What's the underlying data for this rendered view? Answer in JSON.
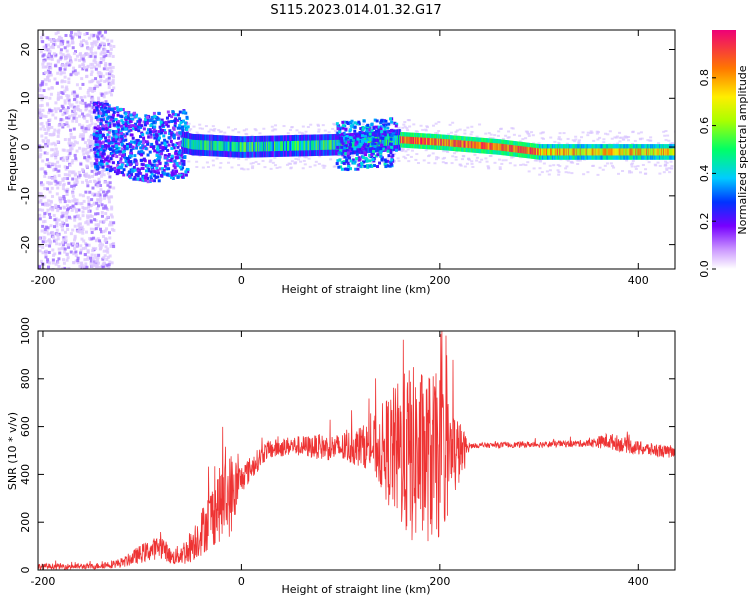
{
  "title": "S115.2023.014.01.32.G17",
  "chart_data": [
    {
      "type": "heatmap",
      "xlabel": "Height of straight line (km)",
      "ylabel": "Frequency (Hz)",
      "xlim": [
        -205,
        437
      ],
      "ylim": [
        -25,
        24
      ],
      "xticks": [
        -200,
        0,
        200,
        400
      ],
      "yticks": [
        -20,
        -10,
        0,
        10,
        20
      ],
      "colorbar": {
        "label": "Normalized spectral amplitude",
        "range": [
          0,
          1
        ],
        "ticks": [
          0.0,
          0.2,
          0.4,
          0.6,
          0.8
        ]
      },
      "grid": false,
      "ridge": [
        {
          "x": -200,
          "f": 4
        },
        {
          "x": -150,
          "f": 3
        },
        {
          "x": -100,
          "f": 0
        },
        {
          "x": -60,
          "f": 1
        },
        {
          "x": -50,
          "f": 0.5
        },
        {
          "x": 0,
          "f": 0
        },
        {
          "x": 100,
          "f": 0.5
        },
        {
          "x": 160,
          "f": 1.5
        },
        {
          "x": 200,
          "f": 1
        },
        {
          "x": 260,
          "f": 0
        },
        {
          "x": 300,
          "f": -1
        },
        {
          "x": 437,
          "f": -1
        }
      ]
    },
    {
      "type": "line",
      "xlabel": "Height of straight line (km)",
      "ylabel": "SNR (10 * v/v)",
      "xlim": [
        -205,
        437
      ],
      "ylim": [
        0,
        1000
      ],
      "xticks": [
        -200,
        0,
        200,
        400
      ],
      "yticks": [
        0,
        200,
        400,
        600,
        800,
        1000
      ],
      "grid": false,
      "series": [
        {
          "color": "#ee3333",
          "envelope": [
            {
              "x": -205,
              "mean": 15,
              "amp": 12
            },
            {
              "x": -150,
              "mean": 15,
              "amp": 12
            },
            {
              "x": -120,
              "mean": 30,
              "amp": 20
            },
            {
              "x": -100,
              "mean": 70,
              "amp": 40
            },
            {
              "x": -80,
              "mean": 100,
              "amp": 50
            },
            {
              "x": -70,
              "mean": 50,
              "amp": 30
            },
            {
              "x": -55,
              "mean": 80,
              "amp": 60
            },
            {
              "x": -40,
              "mean": 160,
              "amp": 100
            },
            {
              "x": -25,
              "mean": 260,
              "amp": 150
            },
            {
              "x": -10,
              "mean": 320,
              "amp": 180
            },
            {
              "x": 0,
              "mean": 380,
              "amp": 60
            },
            {
              "x": 25,
              "mean": 500,
              "amp": 40
            },
            {
              "x": 50,
              "mean": 520,
              "amp": 40
            },
            {
              "x": 100,
              "mean": 510,
              "amp": 60
            },
            {
              "x": 130,
              "mean": 520,
              "amp": 100
            },
            {
              "x": 150,
              "mean": 500,
              "amp": 250
            },
            {
              "x": 170,
              "mean": 480,
              "amp": 380
            },
            {
              "x": 200,
              "mean": 470,
              "amp": 350
            },
            {
              "x": 225,
              "mean": 500,
              "amp": 80
            },
            {
              "x": 230,
              "mean": 520,
              "amp": 10
            },
            {
              "x": 350,
              "mean": 530,
              "amp": 15
            },
            {
              "x": 370,
              "mean": 540,
              "amp": 35
            },
            {
              "x": 400,
              "mean": 510,
              "amp": 30
            },
            {
              "x": 437,
              "mean": 490,
              "amp": 25
            }
          ]
        }
      ]
    }
  ]
}
